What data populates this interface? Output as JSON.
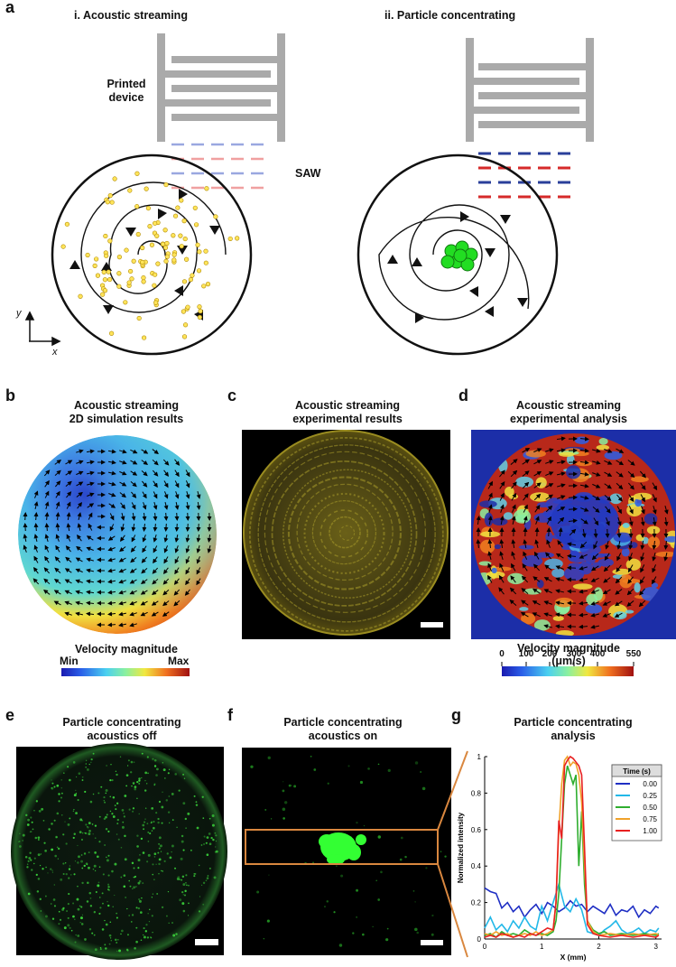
{
  "panels": {
    "a": {
      "label": "a",
      "left_title": "i. Acoustic streaming",
      "right_title": "ii. Particle concentrating",
      "device_label_1": "Printed",
      "device_label_2": "device",
      "saw_label": "SAW",
      "axis_y": "y",
      "axis_x": "x"
    },
    "b": {
      "label": "b",
      "title_1": "Acoustic streaming",
      "title_2": "2D simulation results",
      "colorbar_title": "Velocity magnitude",
      "colorbar_min": "Min",
      "colorbar_max": "Max"
    },
    "c": {
      "label": "c",
      "title_1": "Acoustic streaming",
      "title_2": "experimental results"
    },
    "d": {
      "label": "d",
      "title_1": "Acoustic streaming",
      "title_2": "experimental analysis",
      "colorbar_title": "Velocity magnitude (μm/s)",
      "colorbar_ticks": [
        "0",
        "100",
        "200",
        "300",
        "400",
        "550"
      ]
    },
    "e": {
      "label": "e",
      "title_1": "Particle concentrating",
      "title_2": "acoustics off"
    },
    "f": {
      "label": "f",
      "title_1": "Particle concentrating",
      "title_2": "acoustics on"
    },
    "g": {
      "label": "g",
      "title_1": "Particle concentrating",
      "title_2": "analysis"
    }
  },
  "colors": {
    "device_gray": "#aaaaaa",
    "saw_blue": "#2a3f9a",
    "saw_red": "#d62a2a",
    "particle_yellow": "#ffe45a",
    "cell_green": "#22dd22",
    "highlight_orange": "#d9873f"
  },
  "chart_data": {
    "type": "line",
    "title": "Particle concentrating analysis",
    "xlabel": "X (mm)",
    "ylabel": "Normalized intensity",
    "xlim": [
      0,
      3.1
    ],
    "ylim": [
      0,
      1.0
    ],
    "xticks": [
      "0",
      "1",
      "2",
      "3"
    ],
    "yticks": [
      "0",
      "0.2",
      "0.4",
      "0.6",
      "0.8",
      "1"
    ],
    "legend_title": "Time (s)",
    "legend_position": "top-right",
    "series": [
      {
        "name": "0.00",
        "color": "#1f2fc4",
        "x": [
          0,
          0.1,
          0.2,
          0.3,
          0.4,
          0.5,
          0.6,
          0.7,
          0.8,
          0.9,
          1.0,
          1.1,
          1.2,
          1.3,
          1.4,
          1.5,
          1.6,
          1.7,
          1.8,
          1.9,
          2.0,
          2.1,
          2.2,
          2.3,
          2.4,
          2.5,
          2.6,
          2.7,
          2.8,
          2.9,
          3.0,
          3.05
        ],
        "y": [
          0.28,
          0.26,
          0.25,
          0.17,
          0.2,
          0.15,
          0.18,
          0.12,
          0.16,
          0.19,
          0.14,
          0.2,
          0.18,
          0.15,
          0.17,
          0.21,
          0.18,
          0.19,
          0.15,
          0.18,
          0.16,
          0.14,
          0.19,
          0.13,
          0.16,
          0.15,
          0.18,
          0.12,
          0.16,
          0.14,
          0.18,
          0.17
        ]
      },
      {
        "name": "0.25",
        "color": "#22b8e8",
        "x": [
          0,
          0.1,
          0.2,
          0.3,
          0.4,
          0.5,
          0.6,
          0.7,
          0.8,
          0.9,
          1.0,
          1.1,
          1.2,
          1.3,
          1.4,
          1.5,
          1.6,
          1.7,
          1.8,
          1.9,
          2.0,
          2.1,
          2.2,
          2.3,
          2.4,
          2.5,
          2.6,
          2.7,
          2.8,
          2.9,
          3.0,
          3.05
        ],
        "y": [
          0.06,
          0.12,
          0.05,
          0.08,
          0.04,
          0.1,
          0.06,
          0.12,
          0.07,
          0.05,
          0.18,
          0.1,
          0.2,
          0.3,
          0.18,
          0.15,
          0.22,
          0.16,
          0.04,
          0.03,
          0.02,
          0.05,
          0.07,
          0.1,
          0.05,
          0.03,
          0.04,
          0.06,
          0.03,
          0.05,
          0.04,
          0.06
        ]
      },
      {
        "name": "0.50",
        "color": "#2fae2f",
        "x": [
          0,
          0.1,
          0.2,
          0.3,
          0.4,
          0.5,
          0.6,
          0.7,
          0.8,
          0.9,
          1.0,
          1.1,
          1.2,
          1.25,
          1.3,
          1.35,
          1.4,
          1.45,
          1.5,
          1.55,
          1.6,
          1.65,
          1.7,
          1.75,
          1.8,
          1.9,
          2.0,
          2.1,
          2.2,
          2.4,
          2.6,
          2.8,
          3.0,
          3.05
        ],
        "y": [
          0.02,
          0.03,
          0.01,
          0.04,
          0.02,
          0.03,
          0.02,
          0.05,
          0.03,
          0.02,
          0.03,
          0.02,
          0.04,
          0.1,
          0.25,
          0.55,
          0.85,
          0.95,
          0.9,
          0.85,
          0.9,
          0.4,
          0.7,
          0.3,
          0.1,
          0.05,
          0.03,
          0.04,
          0.02,
          0.03,
          0.02,
          0.03,
          0.02,
          0.03
        ]
      },
      {
        "name": "0.75",
        "color": "#f0a22a",
        "x": [
          0,
          0.1,
          0.2,
          0.3,
          0.4,
          0.5,
          0.6,
          0.7,
          0.8,
          0.9,
          1.0,
          1.1,
          1.2,
          1.25,
          1.3,
          1.35,
          1.4,
          1.45,
          1.5,
          1.55,
          1.6,
          1.65,
          1.7,
          1.75,
          1.8,
          1.9,
          2.0,
          2.2,
          2.4,
          2.6,
          2.8,
          3.0,
          3.05
        ],
        "y": [
          0.03,
          0.02,
          0.04,
          0.02,
          0.03,
          0.01,
          0.02,
          0.03,
          0.02,
          0.04,
          0.02,
          0.03,
          0.05,
          0.2,
          0.6,
          0.85,
          0.98,
          1.0,
          0.95,
          0.97,
          0.96,
          0.9,
          0.75,
          0.4,
          0.1,
          0.04,
          0.02,
          0.03,
          0.02,
          0.03,
          0.02,
          0.03,
          0.02
        ]
      },
      {
        "name": "1.00",
        "color": "#e82020",
        "x": [
          0,
          0.1,
          0.2,
          0.3,
          0.4,
          0.5,
          0.6,
          0.7,
          0.8,
          0.9,
          1.0,
          1.1,
          1.2,
          1.25,
          1.3,
          1.35,
          1.4,
          1.45,
          1.5,
          1.55,
          1.6,
          1.65,
          1.7,
          1.75,
          1.8,
          1.9,
          2.0,
          2.2,
          2.4,
          2.6,
          2.8,
          3.0,
          3.05
        ],
        "y": [
          0.01,
          0.02,
          0.01,
          0.03,
          0.02,
          0.01,
          0.02,
          0.01,
          0.03,
          0.02,
          0.04,
          0.06,
          0.05,
          0.2,
          0.65,
          0.55,
          0.95,
          0.98,
          1.0,
          0.99,
          0.97,
          0.95,
          0.9,
          0.5,
          0.08,
          0.03,
          0.02,
          0.01,
          0.02,
          0.01,
          0.02,
          0.01,
          0.02
        ]
      }
    ]
  }
}
